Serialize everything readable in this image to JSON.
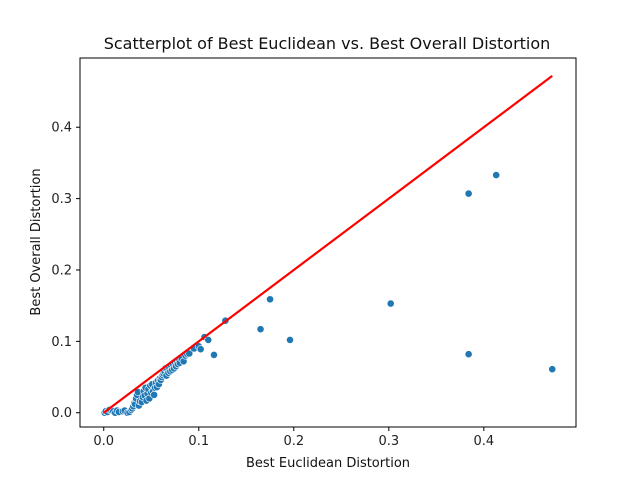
{
  "chart_data": {
    "type": "scatter",
    "title": "Scatterplot of Best Euclidean vs. Best Overall Distortion",
    "xlabel": "Best Euclidean Distortion",
    "ylabel": "Best Overall Distortion",
    "xlim": [
      -0.025,
      0.497
    ],
    "ylim": [
      -0.02,
      0.497
    ],
    "xticks": [
      0.0,
      0.1,
      0.2,
      0.3,
      0.4
    ],
    "yticks": [
      0.0,
      0.1,
      0.2,
      0.3,
      0.4
    ],
    "xtick_labels": [
      "0.0",
      "0.1",
      "0.2",
      "0.3",
      "0.4"
    ],
    "ytick_labels": [
      "0.0",
      "0.1",
      "0.2",
      "0.3",
      "0.4"
    ],
    "grid": false,
    "point_color": "#1f77b4",
    "reference_line": {
      "x": [
        0.0,
        0.472
      ],
      "y": [
        0.0,
        0.472
      ],
      "color": "#ff0000"
    },
    "points": [
      [
        0.001,
        0.0
      ],
      [
        0.002,
        0.002
      ],
      [
        0.004,
        0.001
      ],
      [
        0.006,
        0.004
      ],
      [
        0.008,
        0.003
      ],
      [
        0.01,
        0.002
      ],
      [
        0.012,
        0.0
      ],
      [
        0.014,
        0.003
      ],
      [
        0.016,
        0.001
      ],
      [
        0.02,
        0.002
      ],
      [
        0.022,
        0.003
      ],
      [
        0.025,
        0.0
      ],
      [
        0.027,
        0.001
      ],
      [
        0.029,
        0.004
      ],
      [
        0.03,
        0.006
      ],
      [
        0.031,
        0.009
      ],
      [
        0.032,
        0.013
      ],
      [
        0.033,
        0.012
      ],
      [
        0.034,
        0.02
      ],
      [
        0.035,
        0.025
      ],
      [
        0.036,
        0.029
      ],
      [
        0.037,
        0.01
      ],
      [
        0.038,
        0.016
      ],
      [
        0.04,
        0.015
      ],
      [
        0.041,
        0.022
      ],
      [
        0.042,
        0.03
      ],
      [
        0.043,
        0.024
      ],
      [
        0.044,
        0.035
      ],
      [
        0.045,
        0.017
      ],
      [
        0.046,
        0.027
      ],
      [
        0.047,
        0.033
      ],
      [
        0.048,
        0.02
      ],
      [
        0.049,
        0.038
      ],
      [
        0.05,
        0.028
      ],
      [
        0.051,
        0.04
      ],
      [
        0.052,
        0.03
      ],
      [
        0.053,
        0.025
      ],
      [
        0.054,
        0.035
      ],
      [
        0.055,
        0.042
      ],
      [
        0.056,
        0.036
      ],
      [
        0.057,
        0.045
      ],
      [
        0.058,
        0.04
      ],
      [
        0.059,
        0.048
      ],
      [
        0.06,
        0.046
      ],
      [
        0.061,
        0.05
      ],
      [
        0.062,
        0.053
      ],
      [
        0.063,
        0.055
      ],
      [
        0.064,
        0.058
      ],
      [
        0.065,
        0.062
      ],
      [
        0.066,
        0.052
      ],
      [
        0.067,
        0.06
      ],
      [
        0.068,
        0.056
      ],
      [
        0.069,
        0.063
      ],
      [
        0.07,
        0.058
      ],
      [
        0.071,
        0.066
      ],
      [
        0.072,
        0.06
      ],
      [
        0.073,
        0.068
      ],
      [
        0.074,
        0.062
      ],
      [
        0.075,
        0.07
      ],
      [
        0.076,
        0.065
      ],
      [
        0.077,
        0.072
      ],
      [
        0.078,
        0.068
      ],
      [
        0.079,
        0.074
      ],
      [
        0.08,
        0.07
      ],
      [
        0.082,
        0.076
      ],
      [
        0.084,
        0.072
      ],
      [
        0.086,
        0.08
      ],
      [
        0.088,
        0.082
      ],
      [
        0.09,
        0.083
      ],
      [
        0.095,
        0.09
      ],
      [
        0.1,
        0.093
      ],
      [
        0.102,
        0.089
      ],
      [
        0.106,
        0.106
      ],
      [
        0.11,
        0.102
      ],
      [
        0.116,
        0.081
      ],
      [
        0.128,
        0.129
      ],
      [
        0.165,
        0.117
      ],
      [
        0.175,
        0.159
      ],
      [
        0.196,
        0.102
      ],
      [
        0.302,
        0.153
      ],
      [
        0.384,
        0.307
      ],
      [
        0.384,
        0.082
      ],
      [
        0.413,
        0.333
      ],
      [
        0.472,
        0.061
      ]
    ]
  }
}
